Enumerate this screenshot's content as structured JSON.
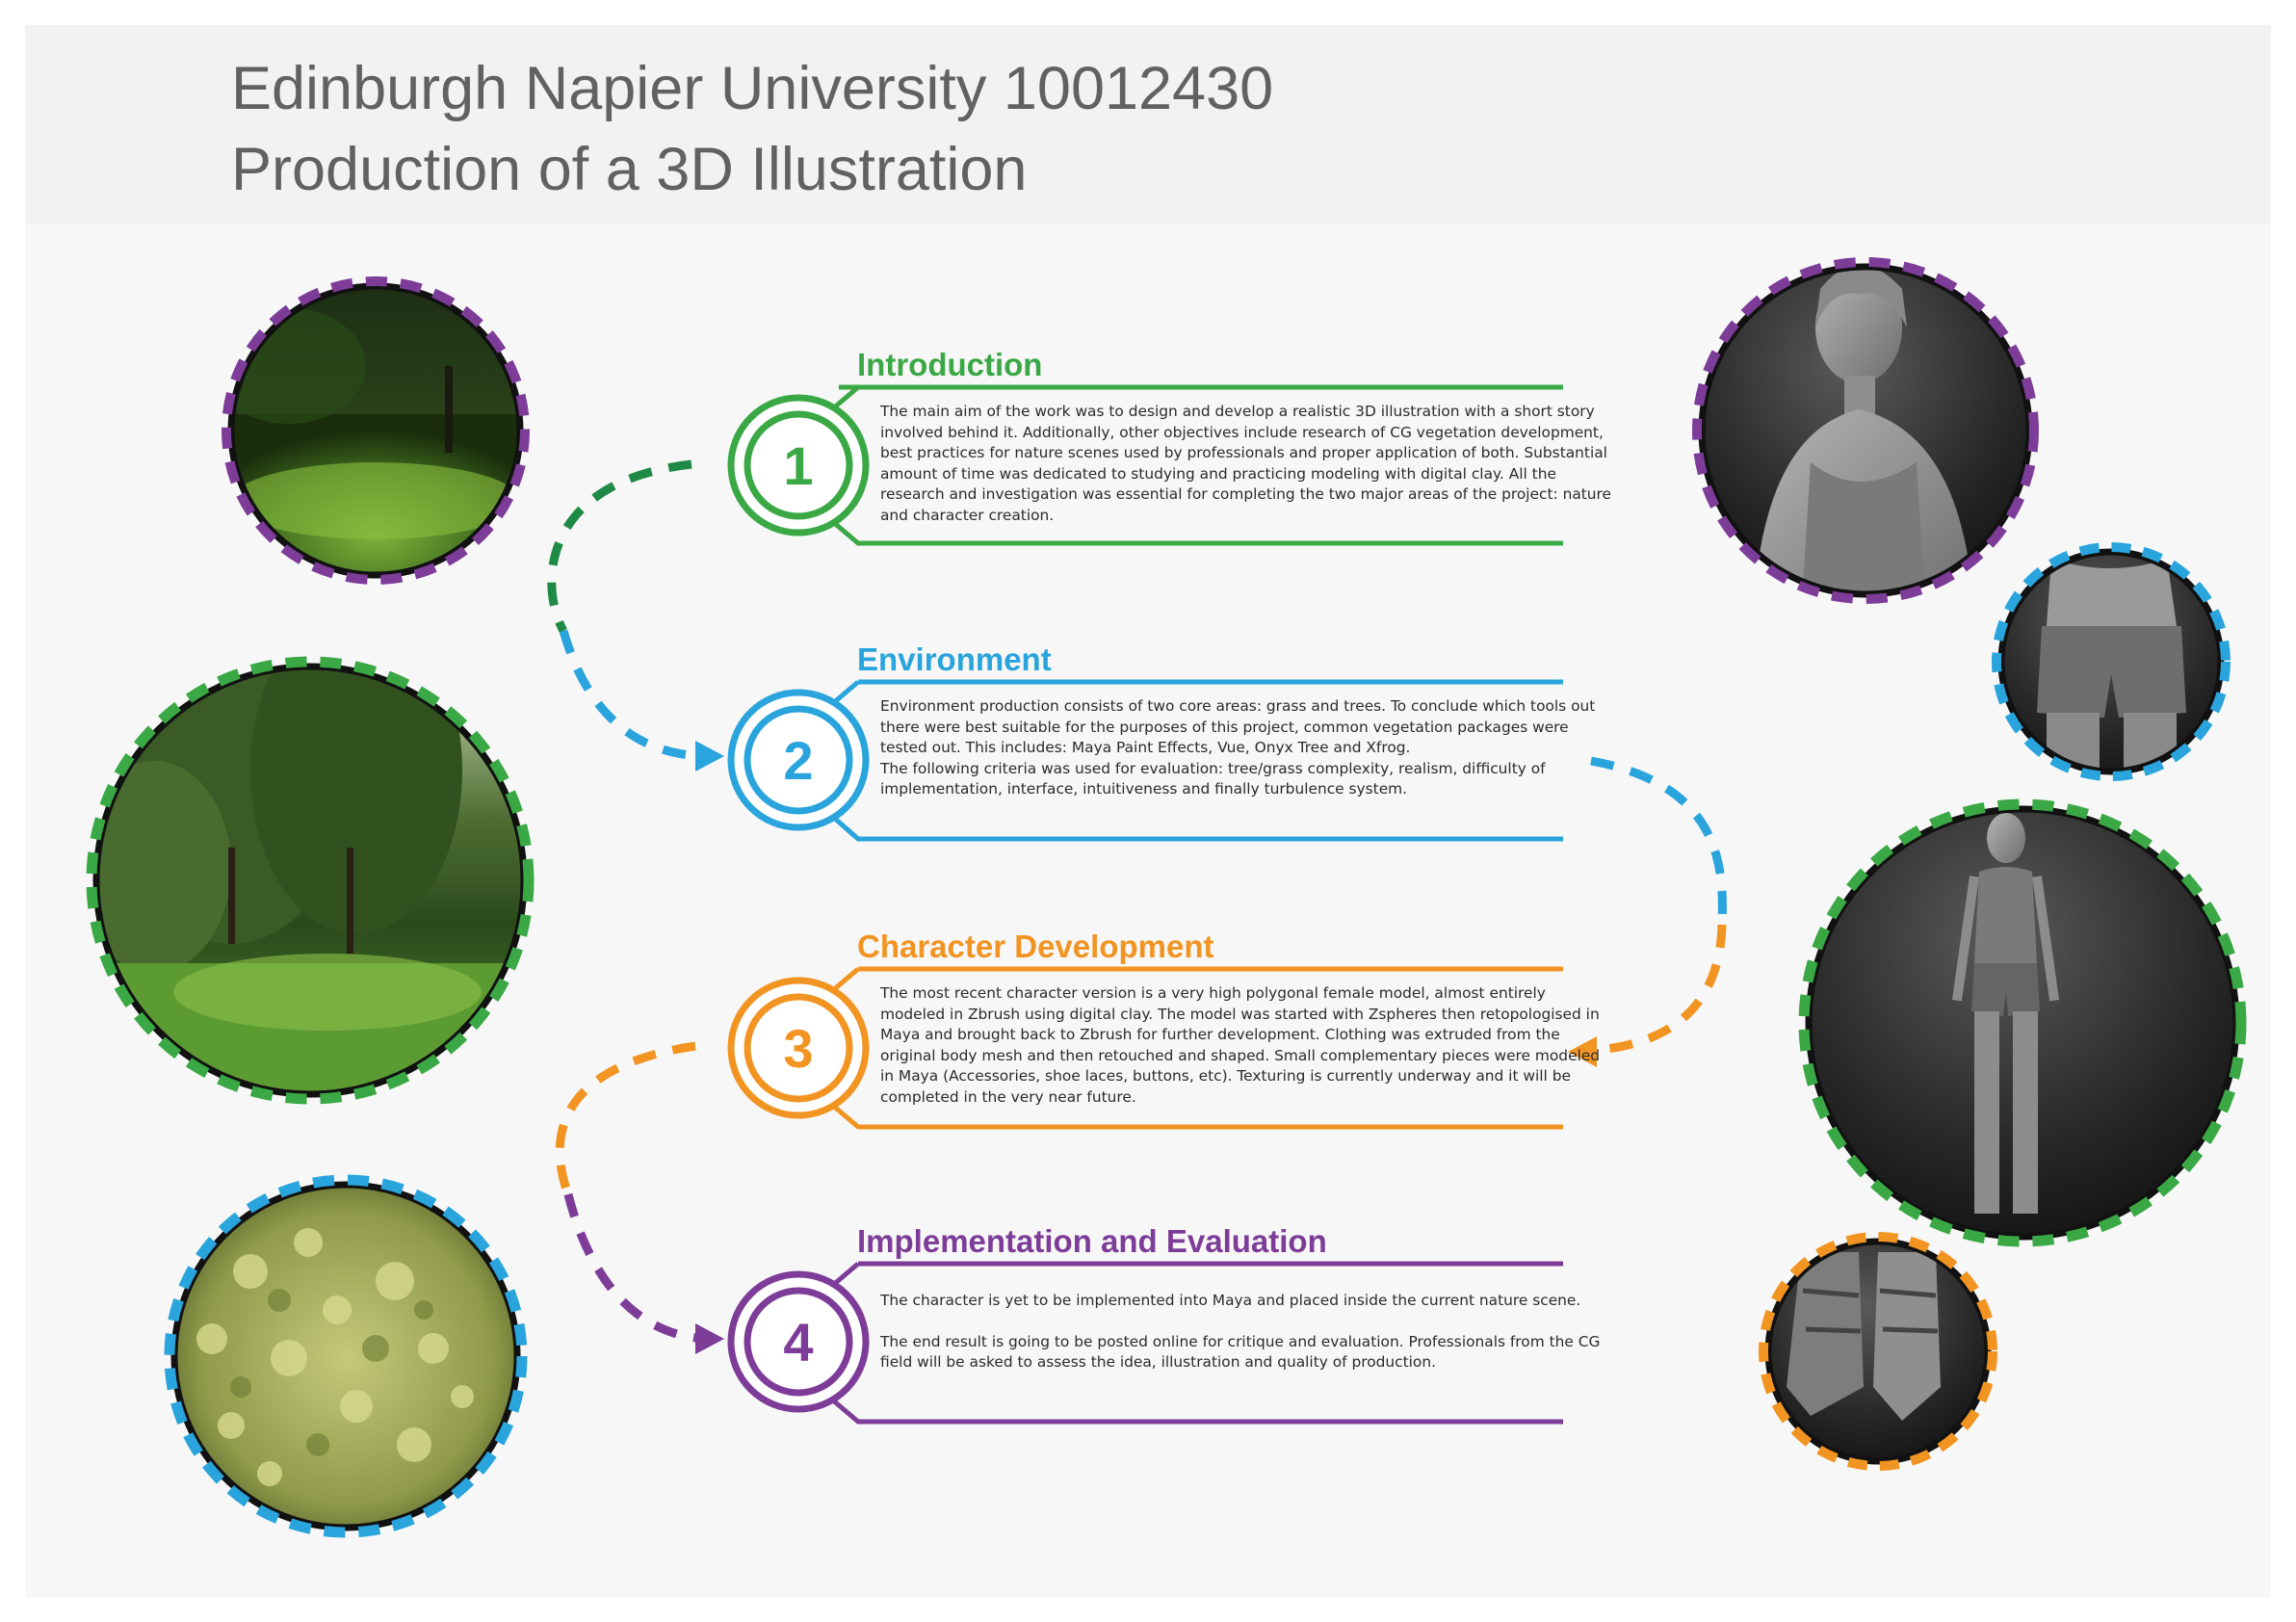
{
  "header": {
    "title_line1": "Edinburgh Napier University 10012430",
    "title_line2": "Production of a 3D Illustration"
  },
  "colors": {
    "green": "#3aa845",
    "blue": "#29a4dd",
    "orange": "#f29422",
    "purple": "#7d3c98",
    "title_gray": "#616161",
    "dark_green_dash": "#1f8a45"
  },
  "sections": [
    {
      "number": "1",
      "title": "Introduction",
      "color": "#3aa845",
      "paragraphs": [
        "The main aim of the work was to design and develop a realistic 3D illustration with a short story involved behind it. Additionally, other objectives include research of CG vegetation development, best practices for nature scenes used by professionals and proper application of both. Substantial amount of time was dedicated to studying and practicing modeling with digital clay. All the research and investigation was essential for completing the two major areas of the project: nature and character creation."
      ]
    },
    {
      "number": "2",
      "title": "Environment",
      "color": "#29a4dd",
      "paragraphs": [
        "Environment production consists of two core areas: grass and trees. To conclude which tools out there were best suitable for the purposes of this project, common vegetation packages were tested out. This includes: Maya Paint Effects, Vue, Onyx Tree and Xfrog.",
        "The following criteria was used for evaluation: tree/grass complexity, realism, difficulty of implementation, interface, intuitiveness and finally turbulence system."
      ]
    },
    {
      "number": "3",
      "title": "Character Development",
      "color": "#f29422",
      "paragraphs": [
        "The most recent character version is a very high polygonal female model, almost entirely modeled in Zbrush using digital clay. The model was started with Zspheres then retopologised in Maya and brought back to Zbrush for further development. Clothing was extruded from the original body mesh and then retouched and shaped. Small complementary pieces were modeled in Maya (Accessories, shoe laces, buttons, etc). Texturing is currently underway and it will be completed in the very near future."
      ]
    },
    {
      "number": "4",
      "title": "Implementation and Evaluation",
      "color": "#7d3c98",
      "paragraphs": [
        "The character is yet to be implemented into Maya and placed inside the current nature scene.",
        "The end result is going to be posted online for critique and evaluation. Professionals from the CG field will be asked to assess the idea, illustration and quality of production."
      ]
    }
  ],
  "images": {
    "left": [
      {
        "subject": "grass-meadow",
        "border": "#7d3c98"
      },
      {
        "subject": "trees-scene",
        "border": "#3aa845"
      },
      {
        "subject": "leaf-bush",
        "border": "#29a4dd"
      }
    ],
    "right": [
      {
        "subject": "character-bust",
        "border": "#7d3c98"
      },
      {
        "subject": "shorts-closeup",
        "border": "#29a4dd"
      },
      {
        "subject": "character-full-body",
        "border": "#3aa845"
      },
      {
        "subject": "boots-closeup",
        "border": "#f29422"
      }
    ]
  }
}
